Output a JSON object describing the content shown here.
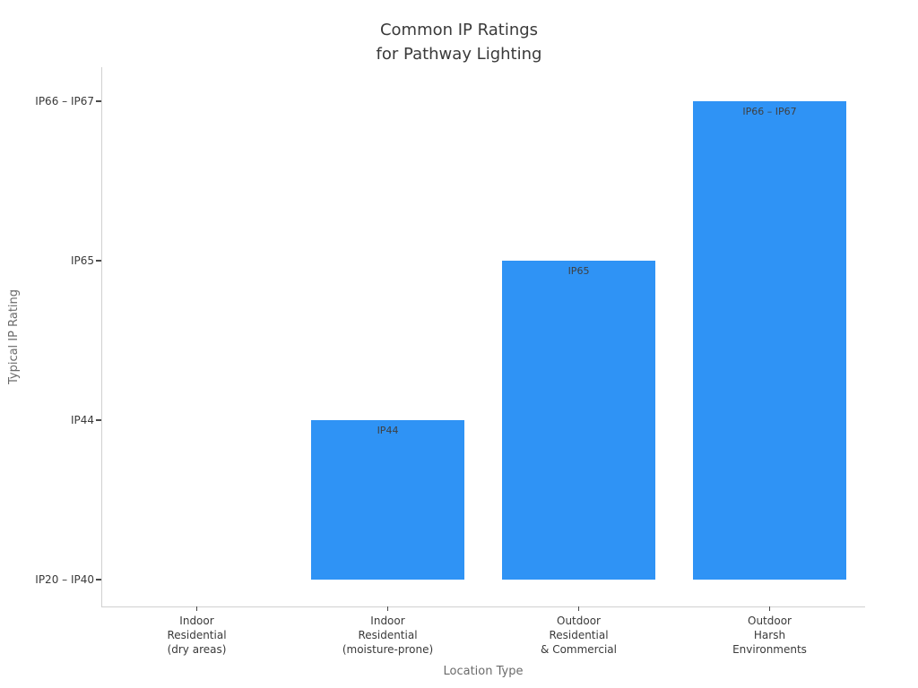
{
  "chart_data": {
    "type": "bar",
    "title": "Common IP Ratings\nfor Pathway Lighting",
    "xlabel": "Location Type",
    "ylabel": "Typical IP Rating",
    "categories": [
      "Indoor\nResidential\n(dry areas)",
      "Indoor\nResidential\n(moisture-prone)",
      "Outdoor\nResidential\n& Commercial",
      "Outdoor\nHarsh\nEnvironments"
    ],
    "values": [
      0,
      1,
      2,
      3
    ],
    "ytick_labels": [
      "IP20 – IP40",
      "IP44",
      "IP65",
      "IP66 – IP67"
    ],
    "bar_labels": [
      "",
      "IP44",
      "IP65",
      "IP66 – IP67"
    ],
    "bar_color": "#2f93f5",
    "grid": false,
    "legend_position": "none",
    "ylim_units": [
      0,
      3.17
    ],
    "bar_width_fraction": 0.8
  }
}
